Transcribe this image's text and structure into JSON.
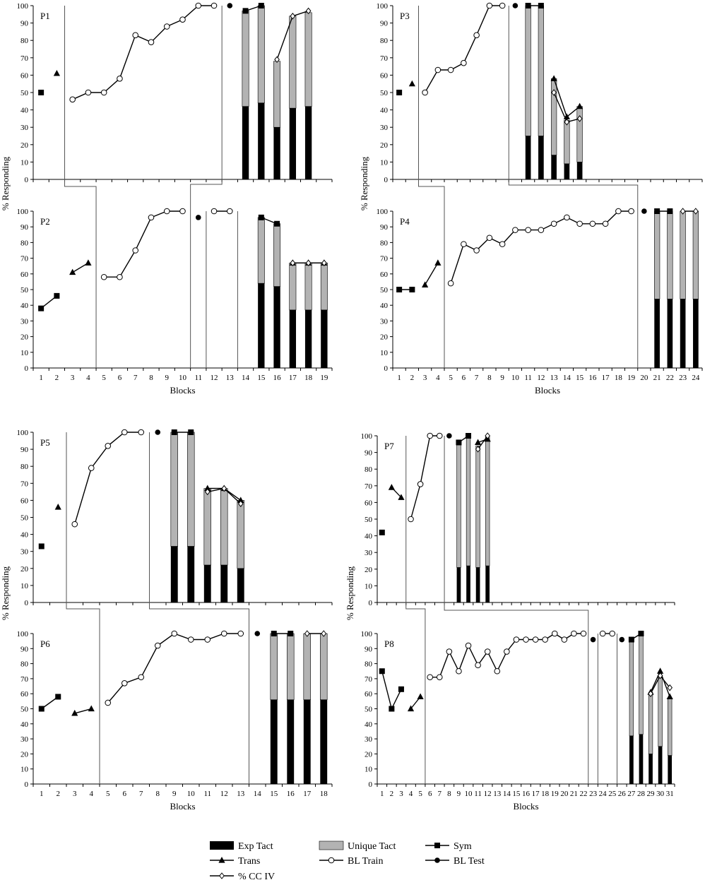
{
  "colors": {
    "exp_tact": "#000000",
    "unique_tact": "#b3b3b3",
    "line": "#000000"
  },
  "legend": {
    "items": [
      {
        "label": "Exp Tact",
        "kind": "bar-black"
      },
      {
        "label": "Unique Tact",
        "kind": "bar-gray"
      },
      {
        "label": "Sym",
        "kind": "line-square"
      },
      {
        "label": "Trans",
        "kind": "line-triangle"
      },
      {
        "label": "BL Train",
        "kind": "line-circle-open"
      },
      {
        "label": "BL Test",
        "kind": "line-circle-filled"
      },
      {
        "label": "% CC IV",
        "kind": "line-diamond-open"
      }
    ]
  },
  "chart_data": [
    {
      "type": "mixed",
      "participant": "P1",
      "xlim": [
        1,
        19
      ],
      "ylim": [
        0,
        100
      ],
      "xticks": [],
      "show_xticks": false,
      "ylabel": "",
      "xlabel": "",
      "sym": [
        [
          [
            1,
            50
          ]
        ]
      ],
      "trans": [
        [
          [
            2,
            61
          ]
        ]
      ],
      "bl_train": [
        [
          [
            3,
            46
          ],
          [
            4,
            50
          ],
          [
            5,
            50
          ],
          [
            6,
            58
          ],
          [
            7,
            83
          ],
          [
            8,
            79
          ],
          [
            9,
            88
          ],
          [
            10,
            92
          ],
          [
            11,
            100
          ],
          [
            12,
            100
          ]
        ]
      ],
      "bl_test": [
        [
          [
            13,
            100
          ]
        ]
      ],
      "bars": [
        {
          "x": 14,
          "exp": 42,
          "unique": 55
        },
        {
          "x": 15,
          "exp": 44,
          "unique": 56
        },
        {
          "x": 16,
          "exp": 30,
          "unique": 38
        },
        {
          "x": 17,
          "exp": 41,
          "unique": 53
        },
        {
          "x": 18,
          "exp": 42,
          "unique": 54
        }
      ],
      "sym_test": [
        [
          [
            14,
            97
          ],
          [
            15,
            100
          ]
        ]
      ],
      "trans_test": [],
      "cc_iv": [
        [
          [
            16,
            69
          ],
          [
            17,
            94
          ],
          [
            18,
            97
          ]
        ]
      ],
      "phase_lines": [
        2.5,
        12.5
      ]
    },
    {
      "type": "mixed",
      "participant": "P2",
      "xlim": [
        1,
        19
      ],
      "ylim": [
        0,
        100
      ],
      "xticks": [
        "1",
        "2",
        "3",
        "4",
        "5",
        "6",
        "7",
        "8",
        "9",
        "10",
        "11",
        "12",
        "13",
        "14",
        "15",
        "16",
        "17",
        "18",
        "19"
      ],
      "show_xticks": true,
      "ylabel": "",
      "xlabel": "Blocks",
      "sym": [
        [
          [
            1,
            38
          ],
          [
            2,
            46
          ]
        ]
      ],
      "trans": [
        [
          [
            3,
            61
          ],
          [
            4,
            67
          ]
        ]
      ],
      "bl_train": [
        [
          [
            5,
            58
          ],
          [
            6,
            58
          ],
          [
            7,
            75
          ],
          [
            8,
            96
          ],
          [
            9,
            100
          ],
          [
            10,
            100
          ]
        ],
        [
          [
            12,
            100
          ],
          [
            13,
            100
          ]
        ]
      ],
      "bl_test": [
        [
          [
            11,
            96
          ]
        ]
      ],
      "bars": [
        {
          "x": 15,
          "exp": 54,
          "unique": 42
        },
        {
          "x": 16,
          "exp": 52,
          "unique": 40
        },
        {
          "x": 17,
          "exp": 37,
          "unique": 30
        },
        {
          "x": 18,
          "exp": 37,
          "unique": 30
        },
        {
          "x": 19,
          "exp": 37,
          "unique": 30
        }
      ],
      "sym_test": [
        [
          [
            15,
            96
          ],
          [
            16,
            92
          ]
        ]
      ],
      "trans_test": [
        [
          [
            17,
            67
          ],
          [
            18,
            67
          ],
          [
            19,
            67
          ]
        ]
      ],
      "cc_iv": [
        [
          [
            17,
            67
          ],
          [
            18,
            67
          ],
          [
            19,
            67
          ]
        ]
      ],
      "phase_lines": [
        4.5,
        10.5,
        11.5,
        13.5
      ]
    },
    {
      "type": "mixed",
      "participant": "P3",
      "xlim": [
        1,
        24
      ],
      "ylim": [
        0,
        100
      ],
      "xticks": [],
      "show_xticks": false,
      "ylabel": "% Responding",
      "xlabel": "",
      "sym": [
        [
          [
            1,
            50
          ]
        ]
      ],
      "trans": [
        [
          [
            2,
            55
          ]
        ]
      ],
      "bl_train": [
        [
          [
            3,
            50
          ],
          [
            4,
            63
          ],
          [
            5,
            63
          ],
          [
            6,
            67
          ],
          [
            7,
            83
          ],
          [
            8,
            100
          ],
          [
            9,
            100
          ]
        ]
      ],
      "bl_test": [
        [
          [
            10,
            100
          ]
        ]
      ],
      "bars": [
        {
          "x": 11,
          "exp": 25,
          "unique": 75
        },
        {
          "x": 12,
          "exp": 25,
          "unique": 75
        },
        {
          "x": 13,
          "exp": 14,
          "unique": 44
        },
        {
          "x": 14,
          "exp": 9,
          "unique": 25
        },
        {
          "x": 15,
          "exp": 10,
          "unique": 32
        }
      ],
      "sym_test": [
        [
          [
            11,
            100
          ],
          [
            12,
            100
          ]
        ]
      ],
      "trans_test": [
        [
          [
            13,
            58
          ],
          [
            14,
            36
          ],
          [
            15,
            42
          ]
        ]
      ],
      "cc_iv": [
        [
          [
            13,
            50
          ],
          [
            14,
            33
          ],
          [
            15,
            35
          ]
        ]
      ],
      "phase_lines": [
        2.5,
        9.5
      ]
    },
    {
      "type": "mixed",
      "participant": "P4",
      "xlim": [
        1,
        24
      ],
      "ylim": [
        0,
        100
      ],
      "xticks": [
        "1",
        "2",
        "3",
        "4",
        "5",
        "6",
        "7",
        "8",
        "9",
        "10",
        "11",
        "12",
        "13",
        "14",
        "15",
        "16",
        "17",
        "18",
        "19",
        "20",
        "21",
        "22",
        "23",
        "24"
      ],
      "show_xticks": true,
      "ylabel": "% Responding",
      "xlabel": "Blocks",
      "sym": [
        [
          [
            1,
            50
          ],
          [
            2,
            50
          ]
        ]
      ],
      "trans": [
        [
          [
            3,
            53
          ],
          [
            4,
            67
          ]
        ]
      ],
      "bl_train": [
        [
          [
            5,
            54
          ],
          [
            6,
            79
          ],
          [
            7,
            75
          ],
          [
            8,
            83
          ],
          [
            9,
            79
          ],
          [
            10,
            88
          ],
          [
            11,
            88
          ],
          [
            12,
            88
          ],
          [
            13,
            92
          ],
          [
            14,
            96
          ],
          [
            15,
            92
          ],
          [
            16,
            92
          ],
          [
            17,
            92
          ],
          [
            18,
            100
          ],
          [
            19,
            100
          ]
        ]
      ],
      "bl_test": [
        [
          [
            20,
            100
          ]
        ]
      ],
      "bars": [
        {
          "x": 21,
          "exp": 44,
          "unique": 56
        },
        {
          "x": 22,
          "exp": 44,
          "unique": 56
        },
        {
          "x": 23,
          "exp": 44,
          "unique": 56
        },
        {
          "x": 24,
          "exp": 44,
          "unique": 56
        }
      ],
      "sym_test": [
        [
          [
            21,
            100
          ],
          [
            22,
            100
          ]
        ]
      ],
      "trans_test": [],
      "cc_iv": [
        [
          [
            23,
            100
          ],
          [
            24,
            100
          ]
        ]
      ],
      "phase_lines": [
        4.5,
        19.5
      ]
    },
    {
      "type": "mixed",
      "participant": "P5",
      "xlim": [
        1,
        18
      ],
      "ylim": [
        0,
        100
      ],
      "xticks": [],
      "show_xticks": false,
      "ylabel": "",
      "xlabel": "",
      "sym": [
        [
          [
            1,
            33
          ]
        ]
      ],
      "trans": [
        [
          [
            2,
            56
          ]
        ]
      ],
      "bl_train": [
        [
          [
            3,
            46
          ],
          [
            4,
            79
          ],
          [
            5,
            92
          ],
          [
            6,
            100
          ],
          [
            7,
            100
          ]
        ]
      ],
      "bl_test": [
        [
          [
            8,
            100
          ]
        ]
      ],
      "bars": [
        {
          "x": 9,
          "exp": 33,
          "unique": 67
        },
        {
          "x": 10,
          "exp": 33,
          "unique": 67
        },
        {
          "x": 11,
          "exp": 22,
          "unique": 45
        },
        {
          "x": 12,
          "exp": 22,
          "unique": 45
        },
        {
          "x": 13,
          "exp": 20,
          "unique": 40
        }
      ],
      "sym_test": [
        [
          [
            9,
            100
          ],
          [
            10,
            100
          ]
        ]
      ],
      "trans_test": [
        [
          [
            11,
            67
          ],
          [
            12,
            67
          ],
          [
            13,
            60
          ]
        ]
      ],
      "cc_iv": [
        [
          [
            11,
            65
          ],
          [
            12,
            67
          ],
          [
            13,
            58
          ]
        ]
      ],
      "phase_lines": [
        2.5,
        7.5
      ]
    },
    {
      "type": "mixed",
      "participant": "P6",
      "xlim": [
        1,
        18
      ],
      "ylim": [
        0,
        100
      ],
      "xticks": [
        "1",
        "2",
        "3",
        "4",
        "5",
        "6",
        "7",
        "8",
        "9",
        "10",
        "11",
        "12",
        "13",
        "14",
        "15",
        "16",
        "17",
        "18"
      ],
      "show_xticks": true,
      "ylabel": "% Responding",
      "xlabel": "Blocks",
      "sym": [
        [
          [
            1,
            50
          ],
          [
            2,
            58
          ]
        ]
      ],
      "trans": [
        [
          [
            3,
            47
          ],
          [
            4,
            50
          ]
        ]
      ],
      "bl_train": [
        [
          [
            5,
            54
          ],
          [
            6,
            67
          ],
          [
            7,
            71
          ],
          [
            8,
            92
          ],
          [
            9,
            100
          ],
          [
            10,
            96
          ],
          [
            11,
            96
          ],
          [
            12,
            100
          ],
          [
            13,
            100
          ]
        ]
      ],
      "bl_test": [
        [
          [
            14,
            100
          ]
        ]
      ],
      "bars": [
        {
          "x": 15,
          "exp": 56,
          "unique": 44
        },
        {
          "x": 16,
          "exp": 56,
          "unique": 44
        },
        {
          "x": 17,
          "exp": 56,
          "unique": 44
        },
        {
          "x": 18,
          "exp": 56,
          "unique": 44
        }
      ],
      "sym_test": [
        [
          [
            15,
            100
          ],
          [
            16,
            100
          ]
        ]
      ],
      "trans_test": [],
      "cc_iv": [
        [
          [
            17,
            100
          ],
          [
            18,
            100
          ]
        ]
      ],
      "phase_lines": [
        4.5,
        13.5
      ]
    },
    {
      "type": "mixed",
      "participant": "P7",
      "xlim": [
        1,
        31
      ],
      "ylim": [
        0,
        100
      ],
      "xticks": [],
      "show_xticks": false,
      "ylabel": "% Responding",
      "xlabel": "",
      "sym": [
        [
          [
            1,
            42
          ]
        ]
      ],
      "trans": [
        [
          [
            2,
            69
          ],
          [
            3,
            63
          ]
        ]
      ],
      "bl_train": [
        [
          [
            4,
            50
          ],
          [
            5,
            71
          ],
          [
            6,
            100
          ],
          [
            7,
            100
          ]
        ]
      ],
      "bl_test": [
        [
          [
            8,
            100
          ]
        ]
      ],
      "bars": [
        {
          "x": 9,
          "exp": 21,
          "unique": 74
        },
        {
          "x": 10,
          "exp": 22,
          "unique": 78
        },
        {
          "x": 11,
          "exp": 21,
          "unique": 73
        },
        {
          "x": 12,
          "exp": 22,
          "unique": 78
        }
      ],
      "sym_test": [
        [
          [
            9,
            96
          ],
          [
            10,
            100
          ]
        ]
      ],
      "trans_test": [
        [
          [
            11,
            96
          ],
          [
            12,
            98
          ]
        ]
      ],
      "cc_iv": [
        [
          [
            11,
            92
          ],
          [
            12,
            100
          ]
        ]
      ],
      "phase_lines": [
        3.5,
        7.5
      ]
    },
    {
      "type": "mixed",
      "participant": "P8",
      "xlim": [
        1,
        31
      ],
      "ylim": [
        0,
        100
      ],
      "xticks": [
        "1",
        "2",
        "3",
        "4",
        "5",
        "6",
        "7",
        "8",
        "9",
        "10",
        "11",
        "12",
        "13",
        "14",
        "15",
        "16",
        "17",
        "18",
        "19",
        "20",
        "21",
        "22",
        "23",
        "24",
        "25",
        "26",
        "27",
        "28",
        "29",
        "30",
        "31"
      ],
      "show_xticks": true,
      "ylabel": "% Responding",
      "xlabel": "Blocks",
      "sym": [
        [
          [
            1,
            75
          ],
          [
            2,
            50
          ],
          [
            3,
            63
          ]
        ]
      ],
      "trans": [
        [
          [
            4,
            50
          ],
          [
            5,
            58
          ]
        ]
      ],
      "bl_train": [
        [
          [
            6,
            71
          ],
          [
            7,
            71
          ],
          [
            8,
            88
          ],
          [
            9,
            75
          ],
          [
            10,
            92
          ],
          [
            11,
            79
          ],
          [
            12,
            88
          ],
          [
            13,
            75
          ],
          [
            14,
            88
          ],
          [
            15,
            96
          ],
          [
            16,
            96
          ],
          [
            17,
            96
          ],
          [
            18,
            96
          ],
          [
            19,
            100
          ],
          [
            20,
            96
          ],
          [
            21,
            100
          ],
          [
            22,
            100
          ]
        ],
        [
          [
            24,
            100
          ],
          [
            25,
            100
          ]
        ]
      ],
      "bl_test": [
        [
          [
            23,
            96
          ]
        ],
        [
          [
            26,
            96
          ]
        ]
      ],
      "bars": [
        {
          "x": 27,
          "exp": 32,
          "unique": 64
        },
        {
          "x": 28,
          "exp": 33,
          "unique": 67
        },
        {
          "x": 29,
          "exp": 20,
          "unique": 41
        },
        {
          "x": 30,
          "exp": 25,
          "unique": 47
        },
        {
          "x": 31,
          "exp": 19,
          "unique": 38
        }
      ],
      "sym_test": [
        [
          [
            27,
            96
          ],
          [
            28,
            100
          ]
        ]
      ],
      "trans_test": [
        [
          [
            29,
            61
          ],
          [
            30,
            75
          ],
          [
            31,
            58
          ]
        ]
      ],
      "cc_iv": [
        [
          [
            29,
            60
          ],
          [
            30,
            72
          ],
          [
            31,
            64
          ]
        ]
      ],
      "phase_lines": [
        5.5,
        22.5,
        23.5,
        25.5
      ]
    }
  ]
}
